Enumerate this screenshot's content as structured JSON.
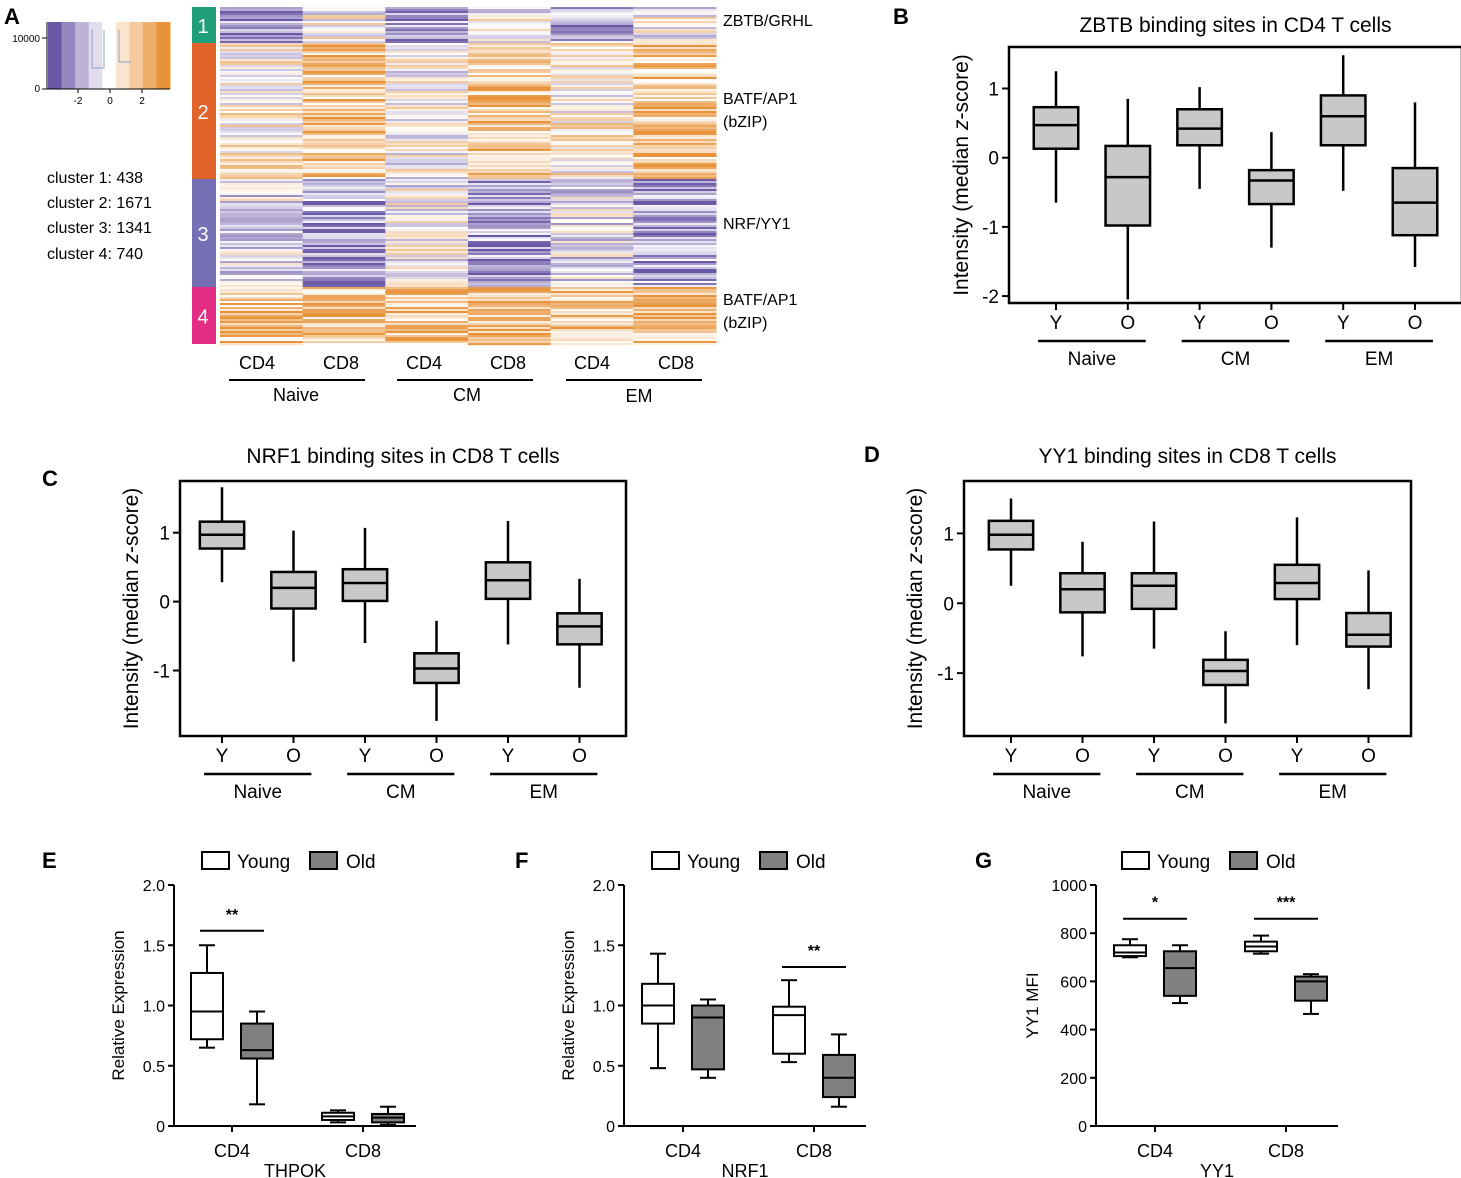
{
  "panel_letters": {
    "A": "A",
    "B": "B",
    "C": "C",
    "D": "D",
    "E": "E",
    "F": "F",
    "G": "G"
  },
  "colors": {
    "heat_low": "#6a57a6",
    "heat_mid": "#ffffff",
    "heat_high": "#e8933a",
    "cluster_1": "#1e9e79",
    "cluster_2": "#e0642a",
    "cluster_3": "#7470b3",
    "cluster_4": "#e32d85",
    "box_gray": "#c8c8c8",
    "old_fill": "#808080",
    "young_fill": "#ffffff"
  },
  "heatmap": {
    "legend": {
      "y_tick": "10000",
      "y_zero": "0",
      "x_ticks": [
        "-2",
        "0",
        "2"
      ]
    },
    "cluster_counts": [
      "cluster 1: 438",
      "cluster 2: 1671",
      "cluster 3: 1341",
      "cluster 4: 740"
    ],
    "clusters": [
      {
        "label": "1",
        "motif": [
          "ZBTB/GRHL"
        ],
        "pattern": [
          -1,
          0,
          -1,
          0,
          -1,
          0
        ]
      },
      {
        "label": "2",
        "motif": [
          "BATF/AP1",
          "(bZIP)"
        ],
        "pattern": [
          0.3,
          1,
          0,
          1,
          0.3,
          1
        ]
      },
      {
        "label": "3",
        "motif": [
          "NRF/YY1"
        ],
        "pattern": [
          -0.3,
          -1,
          0,
          -1,
          -0.3,
          -1
        ]
      },
      {
        "label": "4",
        "motif": [
          "BATF/AP1",
          "(bZIP)"
        ],
        "pattern": [
          1,
          1,
          1,
          1,
          1,
          1
        ]
      }
    ],
    "columns": [
      "CD4",
      "CD8",
      "CD4",
      "CD8",
      "CD4",
      "CD8"
    ],
    "groups": [
      "Naive",
      "CM",
      "EM"
    ]
  },
  "chart_data": [
    {
      "panel": "B",
      "type": "boxplot",
      "title": "ZBTB binding sites in CD4 T cells",
      "ylabel_pre": "Intensity (median ",
      "ylabel_italic": "z",
      "ylabel_post": "-score)",
      "ylim": [
        -2.1,
        1.6
      ],
      "yticks": [
        -2,
        -1,
        0,
        1
      ],
      "ytick_labels": [
        "-2",
        "-1",
        "0",
        "1"
      ],
      "categories": [
        "Y",
        "O",
        "Y",
        "O",
        "Y",
        "O"
      ],
      "groups": [
        "Naive",
        "CM",
        "EM"
      ],
      "boxes": [
        {
          "min": -0.65,
          "q1": 0.13,
          "median": 0.47,
          "q3": 0.73,
          "max": 1.25
        },
        {
          "min": -2.05,
          "q1": -0.98,
          "median": -0.28,
          "q3": 0.17,
          "max": 0.85
        },
        {
          "min": -0.45,
          "q1": 0.18,
          "median": 0.42,
          "q3": 0.7,
          "max": 1.02
        },
        {
          "min": -1.3,
          "q1": -0.67,
          "median": -0.33,
          "q3": -0.18,
          "max": 0.37
        },
        {
          "min": -0.48,
          "q1": 0.18,
          "median": 0.6,
          "q3": 0.9,
          "max": 1.48
        },
        {
          "min": -1.58,
          "q1": -1.12,
          "median": -0.65,
          "q3": -0.15,
          "max": 0.8
        }
      ]
    },
    {
      "panel": "C",
      "type": "boxplot",
      "title": "NRF1 binding sites in CD8 T cells",
      "ylabel_pre": "Intensity (median ",
      "ylabel_italic": "z",
      "ylabel_post": "-score)",
      "ylim": [
        -1.95,
        1.75
      ],
      "yticks": [
        -1,
        0,
        1
      ],
      "ytick_labels": [
        "-1",
        "0",
        "1"
      ],
      "categories": [
        "Y",
        "O",
        "Y",
        "O",
        "Y",
        "O"
      ],
      "groups": [
        "Naive",
        "CM",
        "EM"
      ],
      "boxes": [
        {
          "min": 0.28,
          "q1": 0.77,
          "median": 0.97,
          "q3": 1.16,
          "max": 1.66
        },
        {
          "min": -0.87,
          "q1": -0.1,
          "median": 0.2,
          "q3": 0.43,
          "max": 1.03
        },
        {
          "min": -0.6,
          "q1": 0.01,
          "median": 0.27,
          "q3": 0.47,
          "max": 1.07
        },
        {
          "min": -1.73,
          "q1": -1.18,
          "median": -0.97,
          "q3": -0.75,
          "max": -0.28
        },
        {
          "min": -0.62,
          "q1": 0.04,
          "median": 0.31,
          "q3": 0.57,
          "max": 1.17
        },
        {
          "min": -1.25,
          "q1": -0.62,
          "median": -0.36,
          "q3": -0.17,
          "max": 0.33
        }
      ]
    },
    {
      "panel": "D",
      "type": "boxplot",
      "title": "YY1 binding sites in CD8 T cells",
      "ylabel_pre": "Intensity (median ",
      "ylabel_italic": "z",
      "ylabel_post": "-score)",
      "ylim": [
        -1.9,
        1.75
      ],
      "yticks": [
        -1,
        0,
        1
      ],
      "ytick_labels": [
        "-1",
        "0",
        "1"
      ],
      "categories": [
        "Y",
        "O",
        "Y",
        "O",
        "Y",
        "O"
      ],
      "groups": [
        "Naive",
        "CM",
        "EM"
      ],
      "boxes": [
        {
          "min": 0.25,
          "q1": 0.77,
          "median": 0.98,
          "q3": 1.18,
          "max": 1.5
        },
        {
          "min": -0.76,
          "q1": -0.13,
          "median": 0.2,
          "q3": 0.43,
          "max": 0.88
        },
        {
          "min": -0.65,
          "q1": -0.08,
          "median": 0.25,
          "q3": 0.43,
          "max": 1.17
        },
        {
          "min": -1.72,
          "q1": -1.17,
          "median": -0.97,
          "q3": -0.81,
          "max": -0.4
        },
        {
          "min": -0.6,
          "q1": 0.06,
          "median": 0.29,
          "q3": 0.55,
          "max": 1.23
        },
        {
          "min": -1.23,
          "q1": -0.62,
          "median": -0.45,
          "q3": -0.14,
          "max": 0.47
        }
      ]
    },
    {
      "panel": "E",
      "type": "boxplot",
      "ylabel": "Relative Expression",
      "xlabel": "THPOK",
      "ylim": [
        0,
        2.0
      ],
      "yticks": [
        0,
        0.5,
        1.0,
        1.5,
        2.0
      ],
      "ytick_labels": [
        "0",
        "0.5",
        "1.0",
        "1.5",
        "2.0"
      ],
      "legend": [
        "Young",
        "Old"
      ],
      "categories": [
        "CD4",
        "CD8"
      ],
      "boxes": [
        {
          "group": "CD4",
          "series": "Young",
          "min": 0.65,
          "q1": 0.72,
          "median": 0.95,
          "q3": 1.27,
          "max": 1.5
        },
        {
          "group": "CD4",
          "series": "Old",
          "min": 0.18,
          "q1": 0.56,
          "median": 0.63,
          "q3": 0.85,
          "max": 0.95
        },
        {
          "group": "CD8",
          "series": "Young",
          "min": 0.03,
          "q1": 0.05,
          "median": 0.08,
          "q3": 0.11,
          "max": 0.13
        },
        {
          "group": "CD8",
          "series": "Old",
          "min": 0.01,
          "q1": 0.03,
          "median": 0.07,
          "q3": 0.1,
          "max": 0.16
        }
      ],
      "significance": [
        {
          "label": "**",
          "group": "CD4",
          "y": 1.62
        }
      ]
    },
    {
      "panel": "F",
      "type": "boxplot",
      "ylabel": "Relative Expression",
      "xlabel": "NRF1",
      "ylim": [
        0,
        2.0
      ],
      "yticks": [
        0,
        0.5,
        1.0,
        1.5,
        2.0
      ],
      "ytick_labels": [
        "0",
        "0.5",
        "1.0",
        "1.5",
        "2.0"
      ],
      "legend": [
        "Young",
        "Old"
      ],
      "categories": [
        "CD4",
        "CD8"
      ],
      "boxes": [
        {
          "group": "CD4",
          "series": "Young",
          "min": 0.48,
          "q1": 0.85,
          "median": 1.0,
          "q3": 1.18,
          "max": 1.43
        },
        {
          "group": "CD4",
          "series": "Old",
          "min": 0.4,
          "q1": 0.47,
          "median": 0.9,
          "q3": 1.0,
          "max": 1.05
        },
        {
          "group": "CD8",
          "series": "Young",
          "min": 0.53,
          "q1": 0.6,
          "median": 0.92,
          "q3": 0.99,
          "max": 1.21
        },
        {
          "group": "CD8",
          "series": "Old",
          "min": 0.16,
          "q1": 0.24,
          "median": 0.4,
          "q3": 0.59,
          "max": 0.76
        }
      ],
      "significance": [
        {
          "label": "**",
          "group": "CD8",
          "y": 1.32
        }
      ]
    },
    {
      "panel": "G",
      "type": "boxplot",
      "ylabel": "YY1 MFI",
      "xlabel": "YY1",
      "ylim": [
        0,
        1000
      ],
      "yticks": [
        0,
        200,
        400,
        600,
        800,
        1000
      ],
      "ytick_labels": [
        "0",
        "200",
        "400",
        "600",
        "800",
        "1000"
      ],
      "legend": [
        "Young",
        "Old"
      ],
      "categories": [
        "CD4",
        "CD8"
      ],
      "boxes": [
        {
          "group": "CD4",
          "series": "Young",
          "min": 700,
          "q1": 705,
          "median": 720,
          "q3": 750,
          "max": 775
        },
        {
          "group": "CD4",
          "series": "Old",
          "min": 510,
          "q1": 540,
          "median": 655,
          "q3": 725,
          "max": 750
        },
        {
          "group": "CD8",
          "series": "Young",
          "min": 715,
          "q1": 725,
          "median": 745,
          "q3": 765,
          "max": 790
        },
        {
          "group": "CD8",
          "series": "Old",
          "min": 465,
          "q1": 520,
          "median": 600,
          "q3": 620,
          "max": 630
        }
      ],
      "significance": [
        {
          "label": "*",
          "group": "CD4",
          "y": 860
        },
        {
          "label": "***",
          "group": "CD8",
          "y": 860
        }
      ]
    }
  ]
}
